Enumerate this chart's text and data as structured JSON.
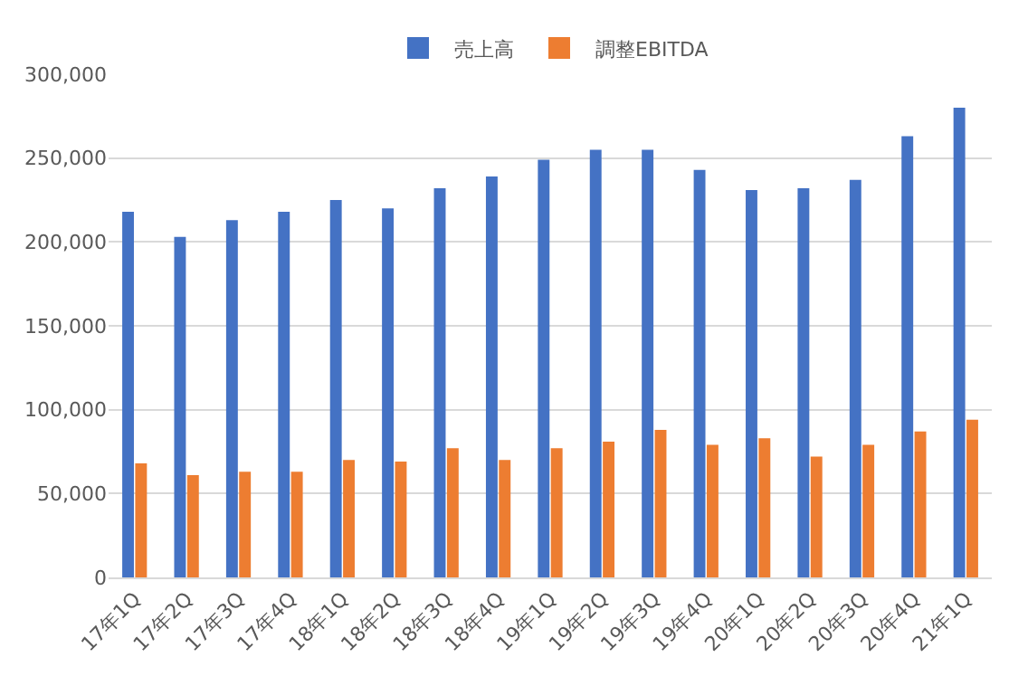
{
  "chart_data": {
    "type": "bar",
    "categories": [
      "17年1Q",
      "17年2Q",
      "17年3Q",
      "17年4Q",
      "18年1Q",
      "18年2Q",
      "18年3Q",
      "18年4Q",
      "19年1Q",
      "19年2Q",
      "19年3Q",
      "19年4Q",
      "20年1Q",
      "20年2Q",
      "20年3Q",
      "20年4Q",
      "21年1Q"
    ],
    "series": [
      {
        "name": "売上高",
        "color": "#4472c4",
        "values": [
          218000,
          203000,
          213000,
          218000,
          225000,
          220000,
          232000,
          239000,
          249000,
          255000,
          255000,
          243000,
          231000,
          232000,
          237000,
          263000,
          280000
        ]
      },
      {
        "name": "調整EBITDA",
        "color": "#ed7d31",
        "values": [
          68000,
          61000,
          63000,
          63000,
          70000,
          69000,
          77000,
          70000,
          77000,
          81000,
          88000,
          79000,
          83000,
          72000,
          79000,
          87000,
          94000
        ]
      }
    ],
    "ylim": [
      0,
      300000
    ],
    "yticks": [
      {
        "value": 0,
        "label": "0"
      },
      {
        "value": 50000,
        "label": "50,000"
      },
      {
        "value": 100000,
        "label": "100,000"
      },
      {
        "value": 150000,
        "label": "150,000"
      },
      {
        "value": 200000,
        "label": "200,000"
      },
      {
        "value": 250000,
        "label": "250,000"
      },
      {
        "value": 300000,
        "label": "300,000"
      }
    ],
    "grid": "y",
    "legend": "top"
  }
}
